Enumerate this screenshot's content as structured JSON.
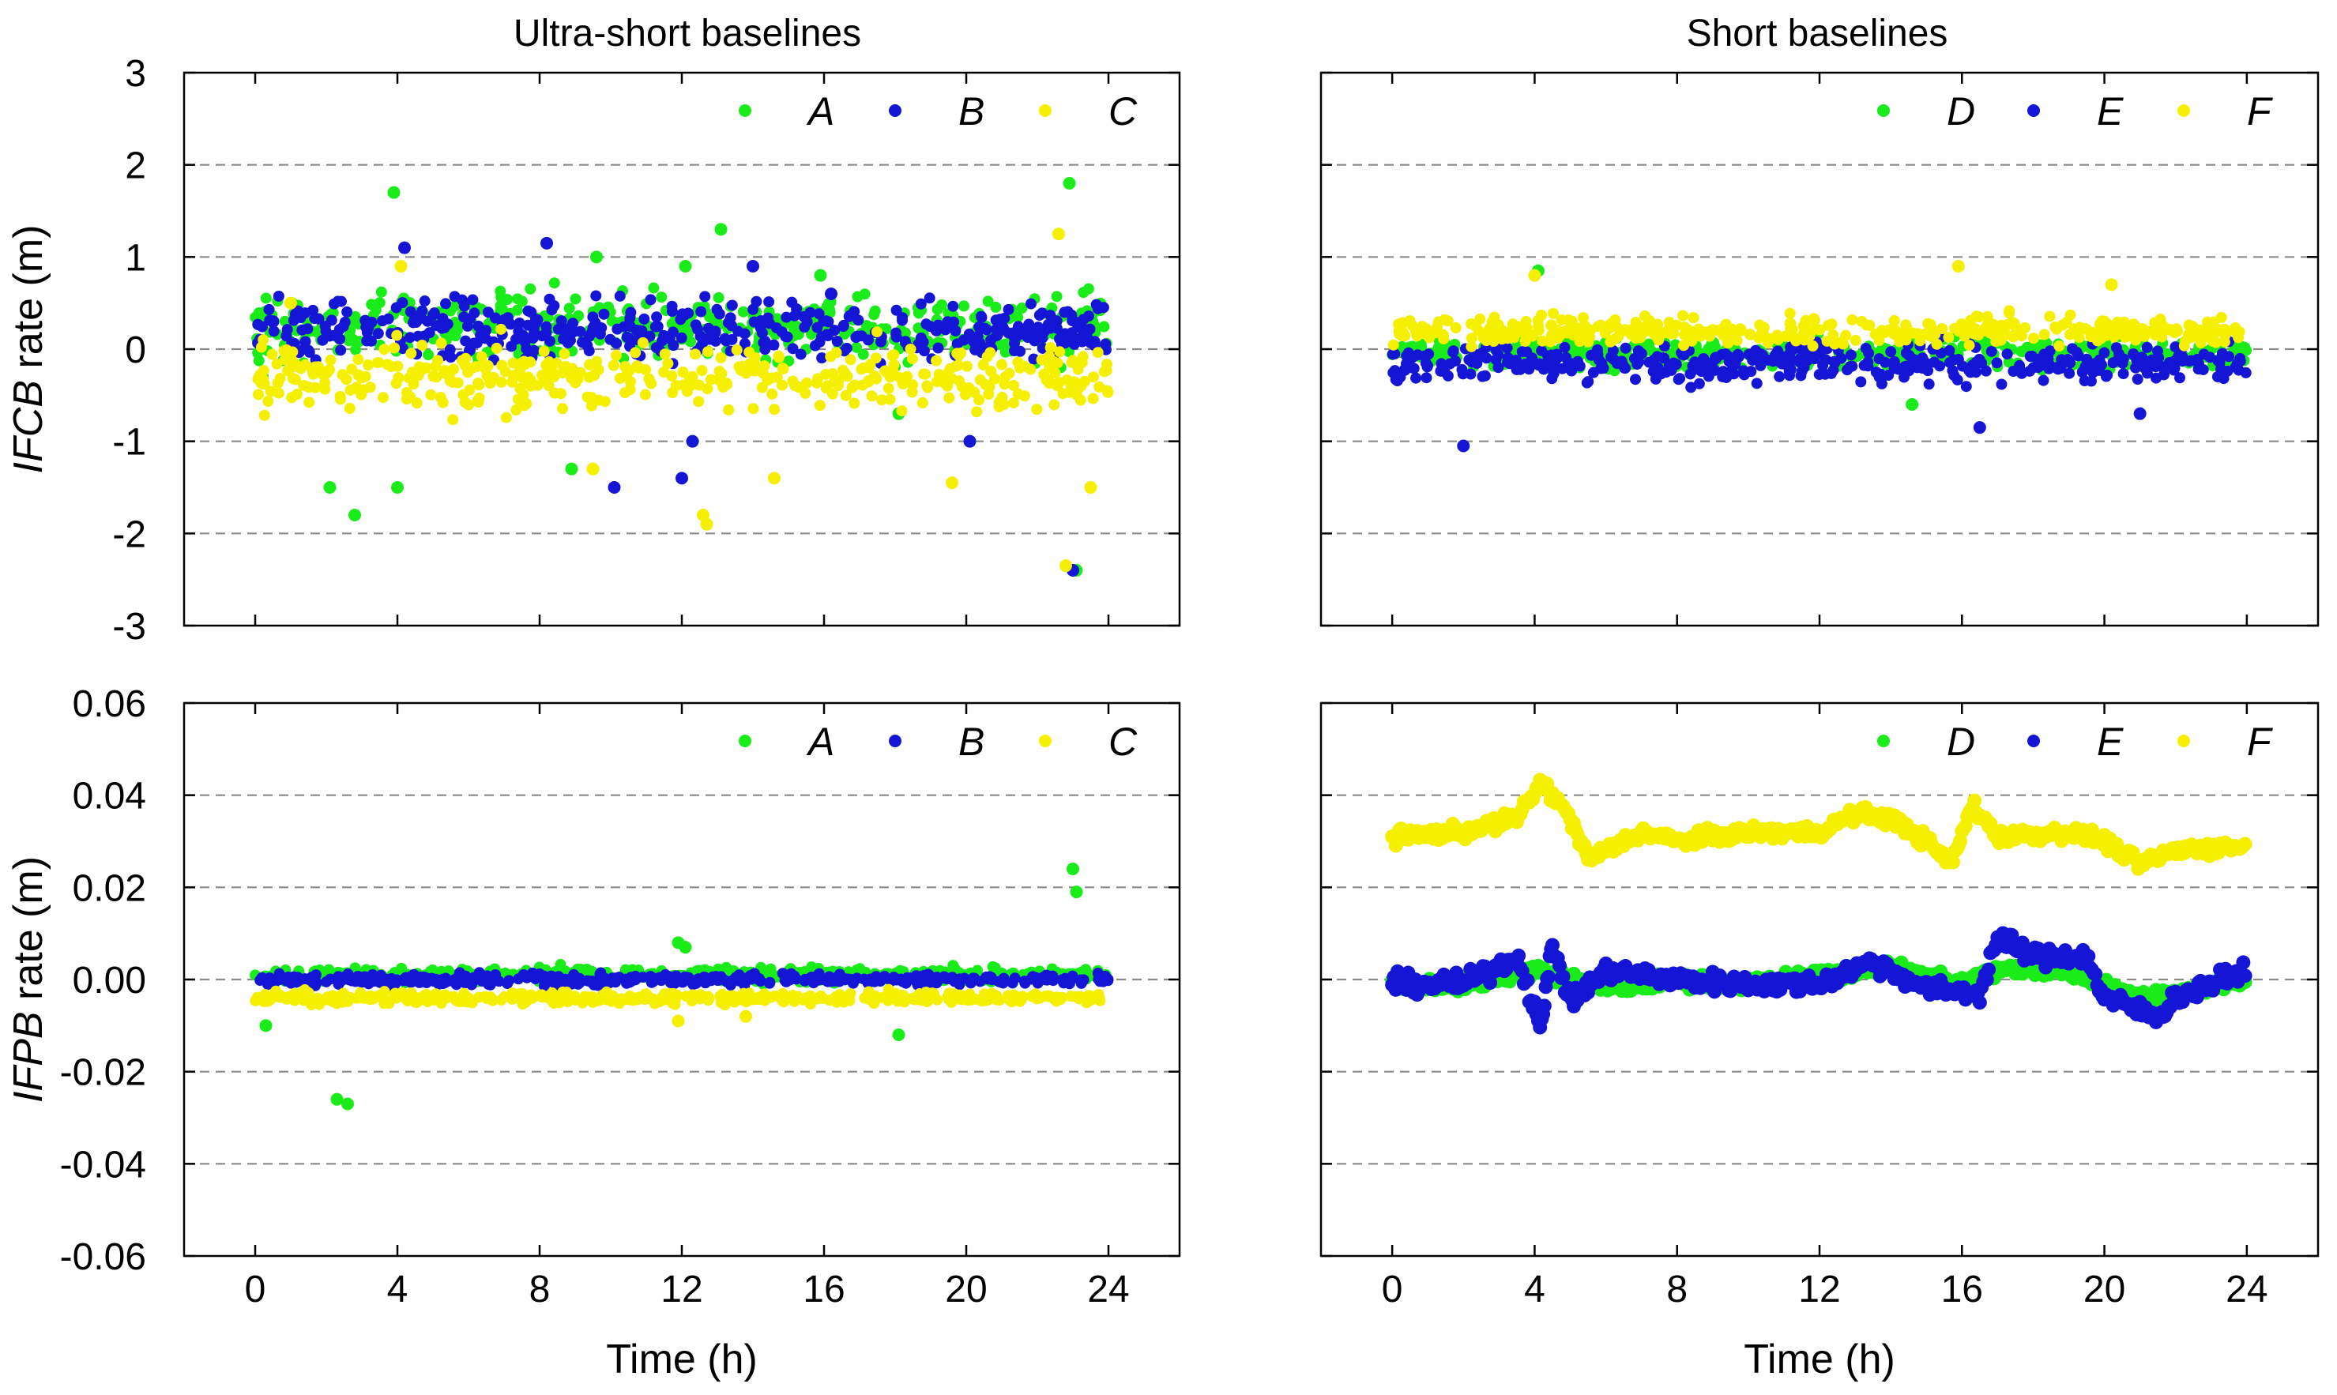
{
  "column_titles": [
    "Ultra-short baselines",
    "Short baselines"
  ],
  "colors": {
    "green": "#1aec1a",
    "blue": "#1515d6",
    "yellow": "#f5ef00",
    "grid": "#8a8a8a",
    "axis": "#000000"
  },
  "chart_data": [
    {
      "id": "ifcb-ultra",
      "type": "scatter",
      "title": "Ultra-short baselines",
      "ylabel_italic": "IFCB",
      "ylabel_rest": " rate (m)",
      "xlabel": "",
      "xlim": [
        -2.0,
        26.0
      ],
      "ylim": [
        -3,
        3
      ],
      "xticks": [
        0,
        4,
        8,
        12,
        16,
        20,
        24
      ],
      "xtick_labels": [],
      "yticks": [
        -3,
        -2,
        -1,
        0,
        1,
        2,
        3
      ],
      "ytick_labels": [
        "-3",
        "-2",
        "-1",
        "0",
        "1",
        "2",
        "3"
      ],
      "grid_y": [
        -2,
        -1,
        0,
        1,
        2
      ],
      "legend_position": "top-right",
      "series": [
        {
          "name": "A",
          "color": "#1aec1a",
          "center": 0.25,
          "spread": 0.35,
          "x": [
            0.2,
            2.1,
            2.8,
            3.9,
            4.0,
            8.9,
            9.6,
            12.1,
            13.1,
            15.9,
            18.1,
            22.9,
            23.1
          ],
          "y": [
            -0.3,
            -1.5,
            -1.8,
            1.7,
            -1.5,
            -1.3,
            1.0,
            0.9,
            1.3,
            0.8,
            -0.7,
            1.8,
            -2.4
          ]
        },
        {
          "name": "B",
          "color": "#1515d6",
          "center": 0.2,
          "spread": 0.3,
          "x": [
            0.5,
            4.2,
            8.2,
            10.1,
            12.0,
            12.3,
            14.0,
            16.2,
            20.1,
            23.0
          ],
          "y": [
            0.3,
            1.1,
            1.15,
            -1.5,
            -1.4,
            -1.0,
            0.9,
            0.6,
            -1.0,
            -2.4
          ]
        },
        {
          "name": "C",
          "color": "#f5ef00",
          "center": -0.3,
          "spread": 0.35,
          "x": [
            1.0,
            4.1,
            9.5,
            12.6,
            12.7,
            14.6,
            19.6,
            22.6,
            22.8,
            23.5
          ],
          "y": [
            0.5,
            0.9,
            -1.3,
            -1.8,
            -1.9,
            -1.4,
            -1.45,
            1.25,
            -2.35,
            -1.5
          ]
        }
      ]
    },
    {
      "id": "ifcb-short",
      "type": "scatter",
      "title": "Short baselines",
      "ylabel_italic": "",
      "ylabel_rest": "",
      "xlabel": "",
      "xlim": [
        -2.0,
        26.0
      ],
      "ylim": [
        -3,
        3
      ],
      "xticks": [
        0,
        4,
        8,
        12,
        16,
        20,
        24
      ],
      "xtick_labels": [],
      "yticks": [
        -3,
        -2,
        -1,
        0,
        1,
        2,
        3
      ],
      "ytick_labels": [],
      "grid_y": [
        -2,
        -1,
        0,
        1,
        2
      ],
      "legend_position": "top-right",
      "series": [
        {
          "name": "D",
          "color": "#1aec1a",
          "center": -0.05,
          "spread": 0.15,
          "x": [
            4.1,
            14.6
          ],
          "y": [
            0.85,
            -0.6
          ]
        },
        {
          "name": "E",
          "color": "#1515d6",
          "center": -0.15,
          "spread": 0.2,
          "x": [
            2.0,
            16.5,
            21.0
          ],
          "y": [
            -1.05,
            -0.85,
            -0.7
          ]
        },
        {
          "name": "F",
          "color": "#f5ef00",
          "center": 0.2,
          "spread": 0.15,
          "x": [
            4.0,
            15.9,
            20.2
          ],
          "y": [
            0.8,
            0.9,
            0.7
          ]
        }
      ]
    },
    {
      "id": "ifpb-ultra",
      "type": "scatter",
      "title": "",
      "ylabel_italic": "IFPB",
      "ylabel_rest": " rate (m)",
      "xlabel": "Time (h)",
      "xlim": [
        -2.0,
        26.0
      ],
      "ylim": [
        -0.06,
        0.06
      ],
      "xticks": [
        0,
        4,
        8,
        12,
        16,
        20,
        24
      ],
      "xtick_labels": [
        "0",
        "4",
        "8",
        "12",
        "16",
        "20",
        "24"
      ],
      "yticks": [
        -0.06,
        -0.04,
        -0.02,
        0.0,
        0.02,
        0.04,
        0.06
      ],
      "ytick_labels": [
        "-0.06",
        "-0.04",
        "-0.02",
        "0.00",
        "0.02",
        "0.04",
        "0.06"
      ],
      "grid_y": [
        -0.04,
        -0.02,
        0.0,
        0.02,
        0.04
      ],
      "legend_position": "top-right",
      "series": [
        {
          "name": "A",
          "color": "#1aec1a",
          "center": 0.001,
          "spread": 0.0015,
          "x": [
            0.3,
            2.3,
            2.6,
            11.9,
            12.1,
            18.1,
            23.0,
            23.1
          ],
          "y": [
            -0.01,
            -0.026,
            -0.027,
            0.008,
            0.007,
            -0.012,
            0.024,
            0.019
          ]
        },
        {
          "name": "B",
          "color": "#1515d6",
          "center": 0.0,
          "spread": 0.0012,
          "x": [],
          "y": []
        },
        {
          "name": "C",
          "color": "#f5ef00",
          "center": -0.004,
          "spread": 0.0012,
          "x": [
            11.9,
            13.8
          ],
          "y": [
            -0.009,
            -0.008
          ]
        }
      ]
    },
    {
      "id": "ifpb-short",
      "type": "scatter",
      "title": "",
      "ylabel_italic": "",
      "ylabel_rest": "",
      "xlabel": "Time (h)",
      "xlim": [
        -2.0,
        26.0
      ],
      "ylim": [
        -0.06,
        0.06
      ],
      "xticks": [
        0,
        4,
        8,
        12,
        16,
        20,
        24
      ],
      "xtick_labels": [
        "0",
        "4",
        "8",
        "12",
        "16",
        "20",
        "24"
      ],
      "yticks": [
        -0.06,
        -0.04,
        -0.02,
        0.0,
        0.02,
        0.04,
        0.06
      ],
      "ytick_labels": [],
      "grid_y": [
        -0.04,
        -0.02,
        0.0,
        0.02,
        0.04
      ],
      "legend_position": "top-right",
      "series": [
        {
          "name": "D",
          "color": "#1aec1a",
          "x": [
            0,
            2,
            4,
            5,
            6,
            8,
            10,
            12,
            14,
            16,
            17,
            19,
            21,
            22,
            24
          ],
          "y": [
            -0.001,
            -0.001,
            0.002,
            0.0,
            -0.002,
            0.0,
            -0.001,
            0.001,
            0.003,
            -0.001,
            0.002,
            0.002,
            -0.004,
            -0.003,
            0.0
          ],
          "jitter": 0.0015
        },
        {
          "name": "E",
          "color": "#1515d6",
          "x": [
            0,
            2,
            3.5,
            4.2,
            4.5,
            5.0,
            6,
            8,
            10,
            12,
            13.5,
            15,
            16.5,
            17.0,
            18,
            19.5,
            20,
            21.5,
            22,
            24
          ],
          "y": [
            -0.001,
            -0.001,
            0.005,
            -0.01,
            0.008,
            -0.005,
            0.002,
            0.0,
            -0.001,
            -0.001,
            0.004,
            -0.002,
            -0.003,
            0.009,
            0.005,
            0.005,
            -0.004,
            -0.008,
            -0.004,
            0.002
          ],
          "jitter": 0.002
        },
        {
          "name": "F",
          "color": "#f5ef00",
          "x": [
            0,
            2,
            3.5,
            4.2,
            5.0,
            5.5,
            7,
            8,
            10,
            12,
            13,
            14,
            15,
            15.7,
            16.3,
            17,
            19,
            20,
            21,
            22,
            24
          ],
          "y": [
            0.031,
            0.032,
            0.035,
            0.043,
            0.035,
            0.026,
            0.032,
            0.03,
            0.032,
            0.032,
            0.036,
            0.035,
            0.03,
            0.025,
            0.038,
            0.031,
            0.032,
            0.03,
            0.025,
            0.028,
            0.029
          ],
          "jitter": 0.0015
        }
      ]
    }
  ]
}
